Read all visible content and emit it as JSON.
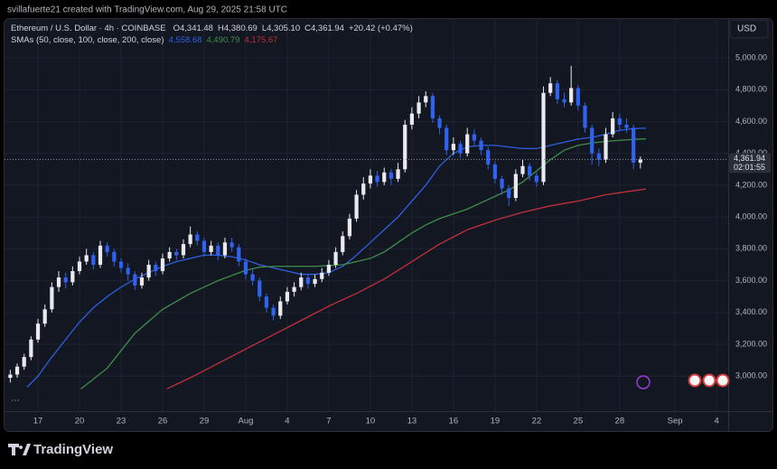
{
  "header": {
    "attribution": "svillafuerte21 created with TradingView.com, Aug 29, 2025 21:58 UTC"
  },
  "footer": {
    "brand": "TradingView"
  },
  "chart_data": {
    "type": "candlestick",
    "symbol": "Ethereum / U.S. Dollar · 4h · COINBASE",
    "ohlc_legend": [
      {
        "key": "O",
        "text": "4,341.48"
      },
      {
        "key": "H",
        "text": "4,380.69"
      },
      {
        "key": "L",
        "text": "4,305.10"
      },
      {
        "key": "C",
        "text": "4,361.94"
      }
    ],
    "change": "+20.42 (+0.47%)",
    "indicator_label": "SMAs (50, close, 100, close, 200, close)",
    "currency": "USD",
    "up_color": "#e8eaf0",
    "down_color": "#2f62f0",
    "grid": true,
    "xlim": [
      14.78,
      66.84
    ],
    "xticks": [
      {
        "value": 17,
        "label": "17"
      },
      {
        "value": 20,
        "label": "20"
      },
      {
        "value": 23,
        "label": "23"
      },
      {
        "value": 26,
        "label": "26"
      },
      {
        "value": 29,
        "label": "29"
      },
      {
        "value": 32,
        "label": "Aug"
      },
      {
        "value": 35,
        "label": "4"
      },
      {
        "value": 38,
        "label": "7"
      },
      {
        "value": 41,
        "label": "10"
      },
      {
        "value": 44,
        "label": "13"
      },
      {
        "value": 47,
        "label": "16"
      },
      {
        "value": 50,
        "label": "19"
      },
      {
        "value": 53,
        "label": "22"
      },
      {
        "value": 56,
        "label": "25"
      },
      {
        "value": 59,
        "label": "28"
      },
      {
        "value": 63,
        "label": "Sep"
      },
      {
        "value": 66,
        "label": "4"
      }
    ],
    "ylim": [
      2780,
      5250
    ],
    "yticks": [
      {
        "value": 3000,
        "label": "3,000.00"
      },
      {
        "value": 3200,
        "label": "3,200.00"
      },
      {
        "value": 3400,
        "label": "3,400.00"
      },
      {
        "value": 3600,
        "label": "3,600.00"
      },
      {
        "value": 3800,
        "label": "3,800.00"
      },
      {
        "value": 4000,
        "label": "4,000.00"
      },
      {
        "value": 4200,
        "label": "4,200.00"
      },
      {
        "value": 4400,
        "label": "4,400.00"
      },
      {
        "value": 4600,
        "label": "4,600.00"
      },
      {
        "value": 4800,
        "label": "4,800.00"
      },
      {
        "value": 5000,
        "label": "5,000.00"
      }
    ],
    "last_price": {
      "value": 4361.94,
      "label": "4,361.94",
      "countdown": "02:01:55"
    },
    "x": [
      15.0,
      15.5,
      16.0,
      16.5,
      17.0,
      17.5,
      18.0,
      18.5,
      19.0,
      19.5,
      20.0,
      20.5,
      21.0,
      21.5,
      22.0,
      22.5,
      23.0,
      23.5,
      24.0,
      24.5,
      25.0,
      25.5,
      26.0,
      26.5,
      27.0,
      27.5,
      28.0,
      28.5,
      29.0,
      29.5,
      30.0,
      30.5,
      31.0,
      31.5,
      32.0,
      32.5,
      33.0,
      33.5,
      34.0,
      34.5,
      35.0,
      35.5,
      36.0,
      36.5,
      37.0,
      37.5,
      38.0,
      38.5,
      39.0,
      39.5,
      40.0,
      40.5,
      41.0,
      41.5,
      42.0,
      42.5,
      43.0,
      43.5,
      44.0,
      44.5,
      45.0,
      45.5,
      46.0,
      46.5,
      47.0,
      47.5,
      48.0,
      48.5,
      49.0,
      49.5,
      50.0,
      50.5,
      51.0,
      51.5,
      52.0,
      52.5,
      53.0,
      53.5,
      54.0,
      54.5,
      55.0,
      55.5,
      56.0,
      56.5,
      57.0,
      57.5,
      58.0,
      58.5,
      59.0,
      59.5,
      60.0,
      60.5
    ],
    "open": [
      2990,
      3010,
      3060,
      3120,
      3230,
      3330,
      3420,
      3560,
      3620,
      3590,
      3660,
      3720,
      3760,
      3700,
      3820,
      3780,
      3720,
      3680,
      3640,
      3570,
      3620,
      3700,
      3660,
      3740,
      3780,
      3760,
      3830,
      3890,
      3850,
      3780,
      3820,
      3760,
      3840,
      3810,
      3720,
      3640,
      3600,
      3500,
      3430,
      3380,
      3470,
      3530,
      3560,
      3620,
      3580,
      3610,
      3650,
      3700,
      3780,
      3880,
      3990,
      4140,
      4210,
      4260,
      4220,
      4280,
      4240,
      4300,
      4580,
      4650,
      4720,
      4760,
      4620,
      4560,
      4420,
      4460,
      4400,
      4520,
      4480,
      4420,
      4330,
      4240,
      4180,
      4120,
      4270,
      4320,
      4260,
      4220,
      4780,
      4840,
      4740,
      4720,
      4810,
      4700,
      4560,
      4400,
      4360,
      4520,
      4620,
      4580,
      4560,
      4341.48
    ],
    "high": [
      3040,
      3080,
      3140,
      3250,
      3360,
      3450,
      3590,
      3660,
      3650,
      3690,
      3750,
      3800,
      3780,
      3850,
      3840,
      3800,
      3740,
      3710,
      3660,
      3650,
      3730,
      3720,
      3770,
      3810,
      3800,
      3860,
      3940,
      3910,
      3870,
      3850,
      3840,
      3870,
      3870,
      3830,
      3740,
      3670,
      3620,
      3520,
      3450,
      3500,
      3560,
      3590,
      3650,
      3640,
      3640,
      3680,
      3730,
      3810,
      3910,
      4020,
      4170,
      4250,
      4300,
      4290,
      4310,
      4300,
      4340,
      4610,
      4690,
      4760,
      4790,
      4780,
      4640,
      4580,
      4500,
      4480,
      4560,
      4550,
      4500,
      4440,
      4350,
      4260,
      4200,
      4300,
      4360,
      4340,
      4280,
      4820,
      4880,
      4860,
      4780,
      4950,
      4830,
      4720,
      4580,
      4430,
      4560,
      4660,
      4650,
      4620,
      4580,
      4380.69
    ],
    "low": [
      2960,
      2990,
      3040,
      3100,
      3210,
      3310,
      3400,
      3530,
      3550,
      3570,
      3640,
      3700,
      3670,
      3680,
      3750,
      3690,
      3650,
      3600,
      3540,
      3550,
      3600,
      3630,
      3640,
      3720,
      3730,
      3740,
      3810,
      3820,
      3750,
      3760,
      3730,
      3740,
      3780,
      3690,
      3610,
      3570,
      3470,
      3400,
      3350,
      3360,
      3450,
      3500,
      3540,
      3550,
      3560,
      3590,
      3630,
      3680,
      3760,
      3860,
      3970,
      4110,
      4180,
      4190,
      4200,
      4200,
      4220,
      4280,
      4550,
      4620,
      4690,
      4590,
      4520,
      4390,
      4390,
      4370,
      4380,
      4450,
      4390,
      4300,
      4210,
      4140,
      4070,
      4100,
      4250,
      4230,
      4190,
      4200,
      4760,
      4710,
      4690,
      4700,
      4670,
      4530,
      4330,
      4320,
      4340,
      4500,
      4550,
      4530,
      4300,
      4305.1
    ],
    "close": [
      3010,
      3060,
      3120,
      3230,
      3330,
      3420,
      3560,
      3620,
      3590,
      3660,
      3720,
      3760,
      3700,
      3820,
      3780,
      3720,
      3680,
      3640,
      3570,
      3620,
      3700,
      3660,
      3740,
      3780,
      3760,
      3830,
      3890,
      3850,
      3780,
      3820,
      3760,
      3840,
      3810,
      3720,
      3640,
      3600,
      3500,
      3430,
      3380,
      3470,
      3530,
      3560,
      3620,
      3580,
      3610,
      3650,
      3700,
      3780,
      3880,
      3990,
      4140,
      4210,
      4260,
      4220,
      4280,
      4240,
      4300,
      4580,
      4650,
      4720,
      4760,
      4620,
      4560,
      4420,
      4460,
      4400,
      4520,
      4480,
      4420,
      4330,
      4240,
      4180,
      4120,
      4270,
      4320,
      4260,
      4220,
      4780,
      4840,
      4740,
      4720,
      4810,
      4700,
      4560,
      4400,
      4360,
      4520,
      4620,
      4580,
      4560,
      4341.48,
      4361.94
    ],
    "series": [
      {
        "color": "#2f5fe0",
        "legend_value": "4,558.68",
        "x": [
          16.2,
          17,
          18,
          19,
          20,
          21,
          22,
          23,
          24,
          25,
          26,
          27,
          28,
          29,
          30,
          31,
          32,
          33,
          34,
          35,
          36,
          37,
          38,
          39,
          40,
          41,
          42,
          43,
          44,
          45,
          46,
          47,
          48,
          49,
          50,
          51,
          52,
          53,
          54,
          55,
          56,
          57,
          58,
          59,
          60,
          60.9
        ],
        "values": [
          2930,
          3000,
          3120,
          3230,
          3340,
          3430,
          3500,
          3560,
          3610,
          3650,
          3690,
          3720,
          3740,
          3760,
          3760,
          3750,
          3730,
          3700,
          3680,
          3660,
          3640,
          3640,
          3650,
          3690,
          3760,
          3840,
          3920,
          4000,
          4100,
          4200,
          4320,
          4400,
          4440,
          4450,
          4450,
          4440,
          4430,
          4430,
          4450,
          4470,
          4490,
          4500,
          4520,
          4545,
          4555,
          4558.68
        ]
      },
      {
        "color": "#3e8e4a",
        "legend_value": "4,490.79",
        "x": [
          20.1,
          22,
          24,
          26,
          28,
          30,
          32,
          33,
          34,
          35,
          36,
          37,
          38,
          39,
          40,
          41,
          42,
          43,
          44,
          45,
          46,
          47,
          48,
          49,
          50,
          51,
          52,
          53,
          54,
          55,
          56,
          57,
          58,
          59,
          60,
          60.9
        ],
        "values": [
          2920,
          3050,
          3270,
          3420,
          3520,
          3600,
          3665,
          3685,
          3690,
          3690,
          3690,
          3690,
          3695,
          3700,
          3720,
          3740,
          3780,
          3840,
          3900,
          3950,
          3990,
          4020,
          4050,
          4090,
          4130,
          4170,
          4220,
          4290,
          4360,
          4420,
          4450,
          4465,
          4475,
          4482,
          4488,
          4490.79
        ]
      },
      {
        "color": "#c0303a",
        "legend_value": "4,175.67",
        "x": [
          26.3,
          28,
          30,
          32,
          34,
          36,
          38,
          40,
          42,
          44,
          46,
          48,
          50,
          52,
          54,
          56,
          58,
          60,
          60.9
        ],
        "values": [
          2920,
          2990,
          3080,
          3170,
          3260,
          3350,
          3440,
          3520,
          3610,
          3720,
          3830,
          3920,
          3980,
          4030,
          4070,
          4100,
          4140,
          4165,
          4175.67
        ]
      }
    ]
  }
}
